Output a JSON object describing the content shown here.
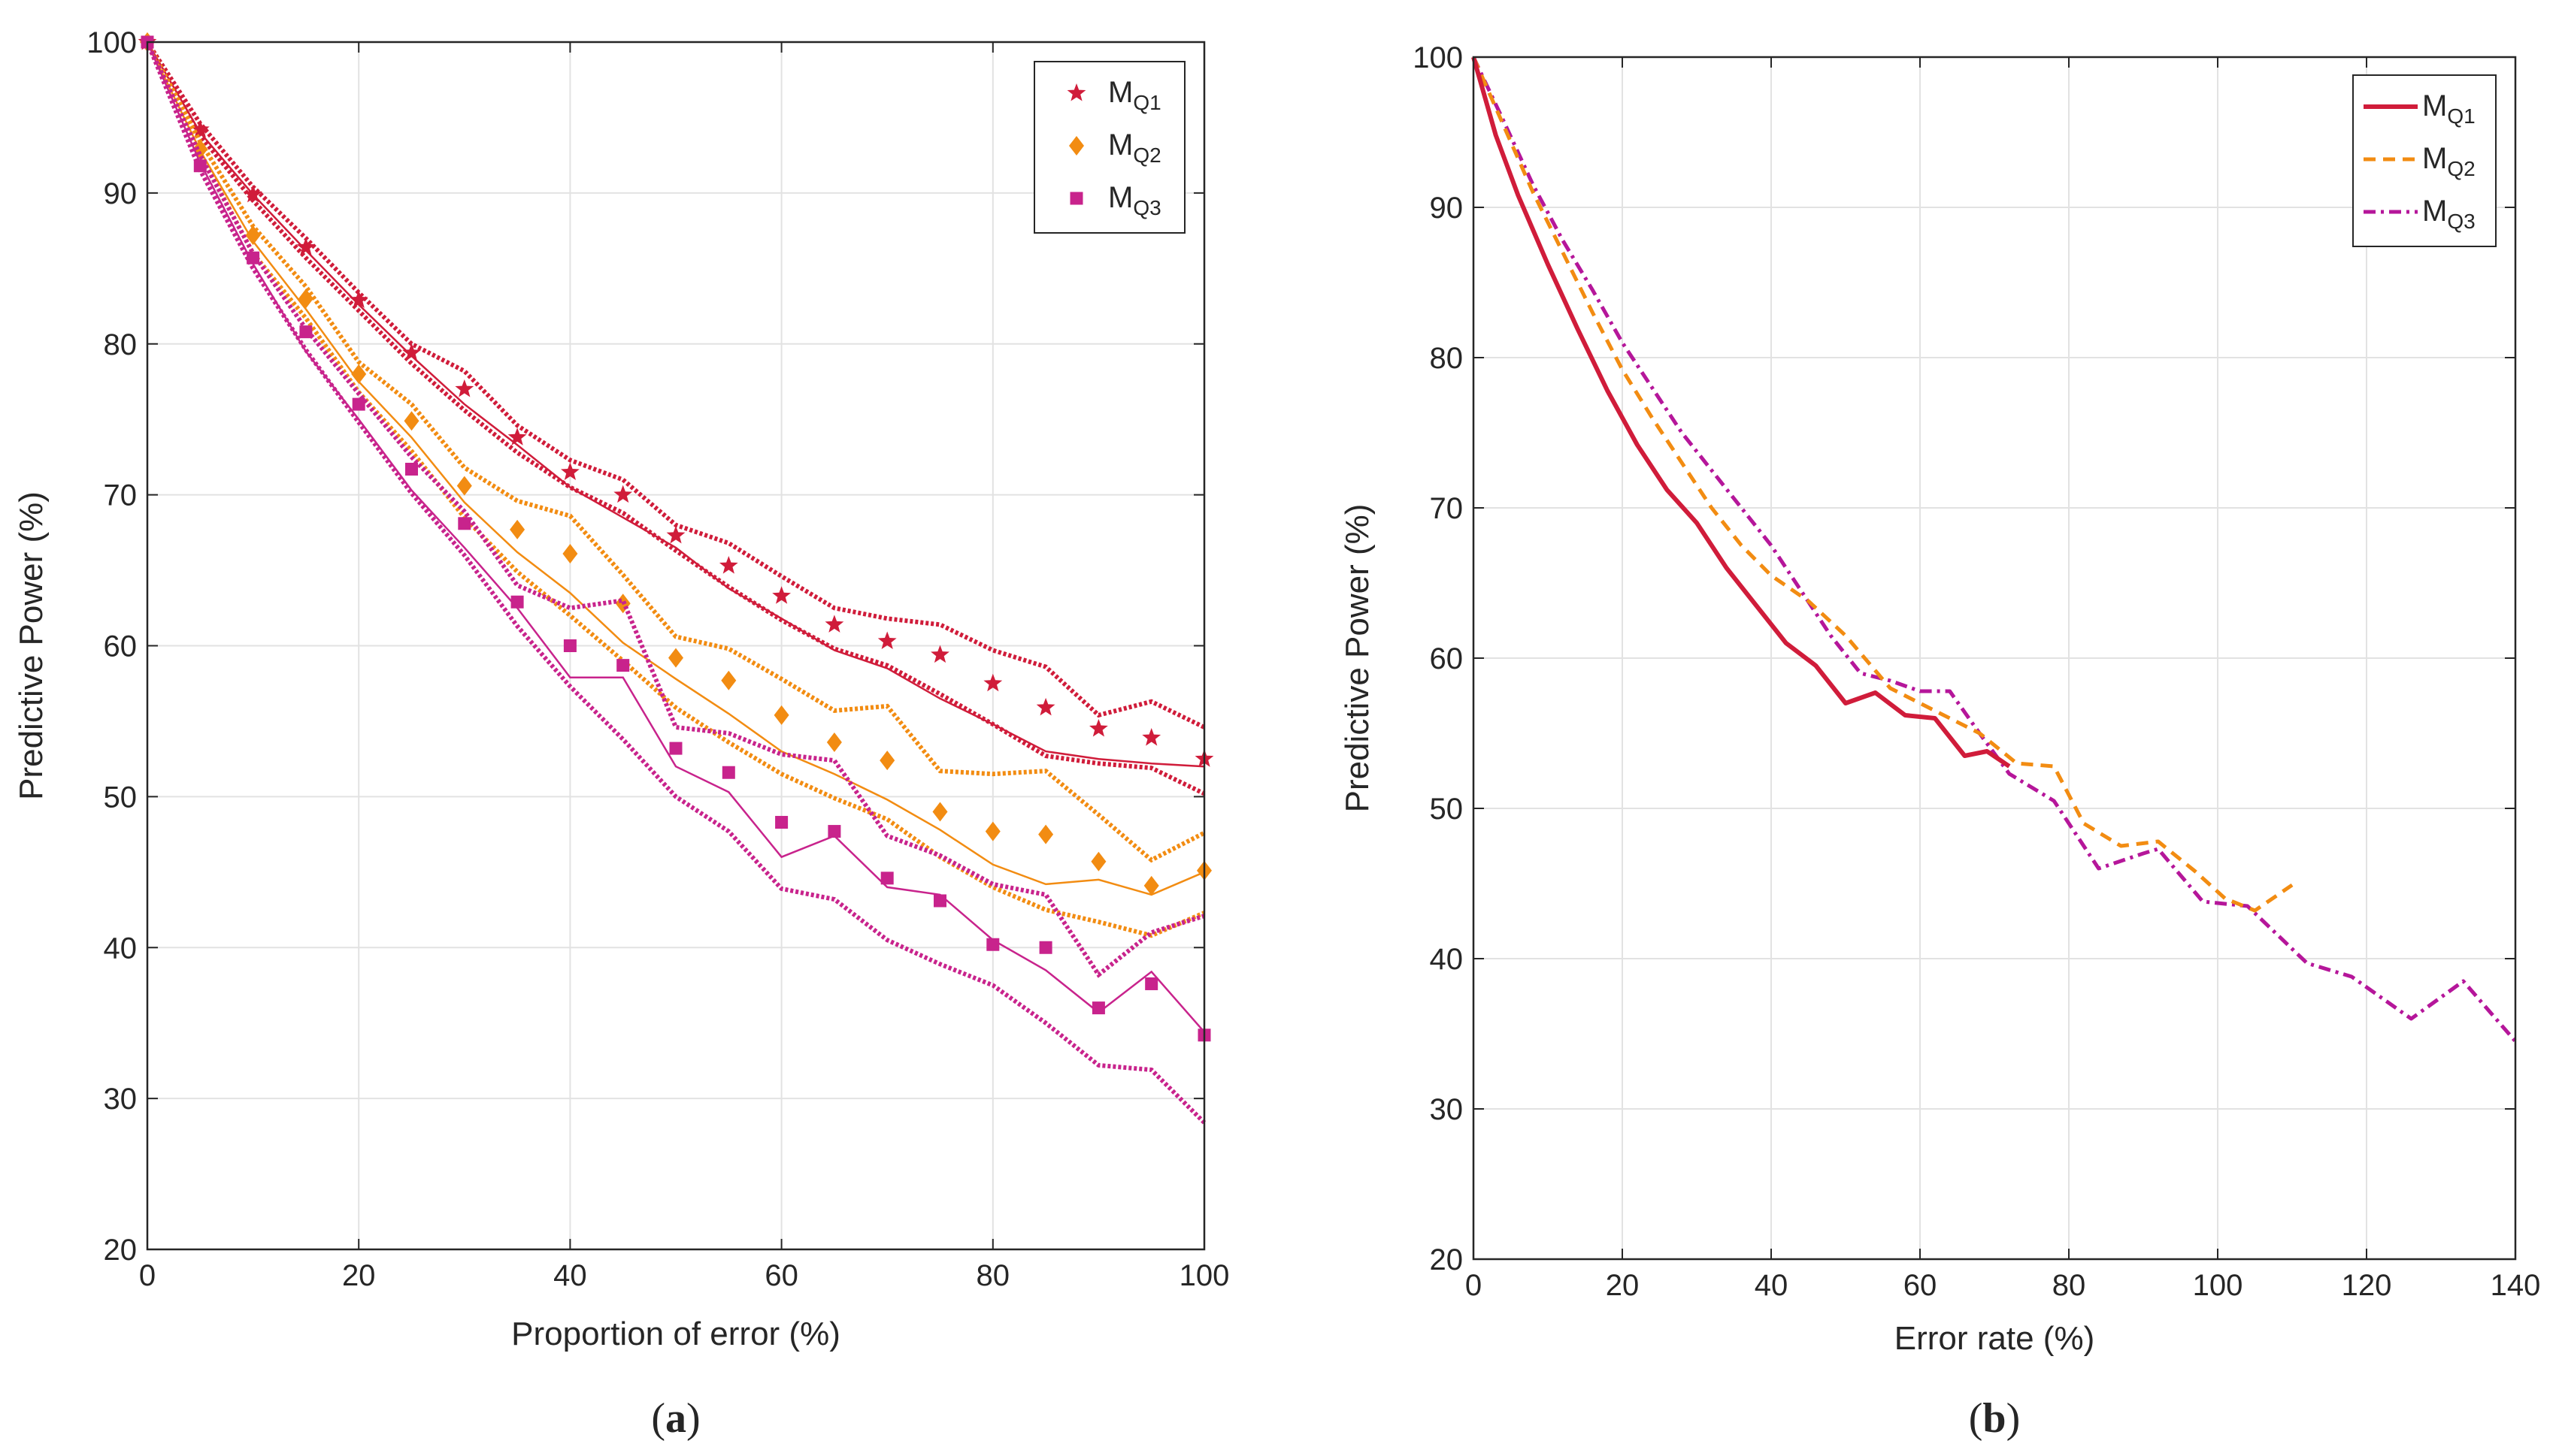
{
  "chart_data": [
    {
      "type": "line",
      "panel_label": "a",
      "xlabel": "Proportion of error (%)",
      "ylabel": "Predictive Power (%)",
      "xlim": [
        0,
        100
      ],
      "ylim": [
        20,
        100
      ],
      "xticks": [
        0,
        20,
        40,
        60,
        80,
        100
      ],
      "yticks": [
        20,
        30,
        40,
        50,
        60,
        70,
        80,
        90,
        100
      ],
      "grid": true,
      "legend_position": "top-right",
      "x": [
        0,
        5,
        10,
        15,
        20,
        25,
        30,
        35,
        40,
        45,
        50,
        55,
        60,
        65,
        70,
        75,
        80,
        85,
        90,
        95,
        100
      ],
      "series": [
        {
          "name": "M",
          "sub": "Q1",
          "color": "#d01c3a",
          "marker": "star",
          "values": [
            100,
            94.2,
            89.9,
            86.4,
            82.9,
            79.4,
            77.0,
            73.8,
            71.5,
            70.0,
            67.3,
            65.3,
            63.3,
            61.4,
            60.3,
            59.4,
            57.5,
            55.9,
            54.5,
            53.9,
            52.5
          ],
          "fit": [
            100,
            94.0,
            89.9,
            86.2,
            82.6,
            79.2,
            76.0,
            73.3,
            70.5,
            68.5,
            66.5,
            63.8,
            61.8,
            59.7,
            58.5,
            56.5,
            54.8,
            53.0,
            52.5,
            52.2,
            52.0
          ],
          "upper": [
            100,
            94.6,
            90.4,
            87.0,
            83.4,
            80.0,
            78.2,
            74.6,
            72.3,
            71.0,
            68.0,
            66.8,
            64.6,
            62.5,
            61.8,
            61.4,
            59.7,
            58.6,
            55.4,
            56.3,
            54.6
          ],
          "lower": [
            100,
            93.8,
            89.5,
            85.7,
            82.2,
            78.7,
            75.6,
            72.8,
            70.5,
            68.8,
            66.3,
            63.9,
            61.7,
            59.8,
            58.7,
            56.8,
            54.8,
            52.7,
            52.2,
            51.9,
            50.2
          ]
        },
        {
          "name": "M",
          "sub": "Q2",
          "color": "#f28c12",
          "marker": "diamond",
          "values": [
            100,
            92.9,
            87.2,
            83.0,
            78.0,
            74.9,
            70.6,
            67.7,
            66.1,
            62.8,
            59.2,
            57.7,
            55.4,
            53.6,
            52.4,
            49.0,
            47.7,
            47.5,
            45.7,
            44.1,
            45.1
          ],
          "fit": [
            100,
            92.8,
            86.8,
            82.3,
            77.5,
            73.8,
            69.5,
            66.2,
            63.5,
            60.2,
            57.8,
            55.5,
            53.0,
            51.5,
            49.8,
            47.8,
            45.5,
            44.2,
            44.5,
            43.5,
            45.0
          ],
          "upper": [
            100,
            93.4,
            87.8,
            83.8,
            78.8,
            76.0,
            71.8,
            69.6,
            68.6,
            64.7,
            60.6,
            59.8,
            57.8,
            55.7,
            56.0,
            51.7,
            51.5,
            51.7,
            48.8,
            45.8,
            47.6
          ],
          "lower": [
            100,
            92.6,
            86.0,
            81.7,
            76.8,
            72.9,
            68.5,
            64.9,
            62.0,
            59.0,
            55.9,
            53.6,
            51.5,
            49.9,
            48.5,
            46.0,
            44.0,
            42.5,
            41.7,
            40.8,
            42.3
          ]
        },
        {
          "name": "M",
          "sub": "Q3",
          "color": "#c8238c",
          "marker": "square",
          "values": [
            100,
            91.8,
            85.7,
            80.8,
            76.0,
            71.7,
            68.1,
            62.9,
            60.0,
            58.7,
            53.2,
            51.6,
            48.3,
            47.7,
            44.6,
            43.1,
            40.2,
            40.0,
            36.0,
            37.6,
            34.2
          ],
          "fit": [
            100,
            92.0,
            85.3,
            79.5,
            75.0,
            70.3,
            66.5,
            62.5,
            57.9,
            57.9,
            52.0,
            50.3,
            46.0,
            47.4,
            44.0,
            43.5,
            40.5,
            38.5,
            35.7,
            38.4,
            34.4
          ],
          "upper": [
            100,
            92.5,
            86.0,
            81.0,
            76.7,
            72.5,
            68.9,
            64.0,
            62.5,
            63.0,
            54.6,
            54.2,
            52.8,
            52.4,
            47.4,
            46.1,
            44.2,
            43.5,
            38.2,
            41.0,
            42.1
          ],
          "lower": [
            100,
            91.5,
            85.0,
            79.6,
            74.8,
            70.1,
            66.0,
            61.3,
            57.3,
            53.8,
            50.0,
            47.7,
            43.9,
            43.2,
            40.5,
            38.9,
            37.5,
            35.0,
            32.2,
            31.9,
            28.4
          ]
        }
      ]
    },
    {
      "type": "line",
      "panel_label": "b",
      "xlabel": "Error rate (%)",
      "ylabel": "Predictive Power (%)",
      "xlim": [
        0,
        140
      ],
      "ylim": [
        20,
        100
      ],
      "xticks": [
        0,
        20,
        40,
        60,
        80,
        100,
        120,
        140
      ],
      "yticks": [
        20,
        30,
        40,
        50,
        60,
        70,
        80,
        90,
        100
      ],
      "grid": true,
      "legend_position": "top-right",
      "series": [
        {
          "name": "M",
          "sub": "Q1",
          "color": "#d01c3a",
          "style": "solid",
          "x": [
            0,
            3,
            6,
            10,
            14,
            18,
            22,
            26,
            30,
            34,
            38,
            42,
            46,
            50,
            54,
            58,
            62,
            66,
            69,
            72
          ],
          "y": [
            100,
            94.8,
            90.8,
            86.2,
            81.9,
            77.8,
            74.2,
            71.2,
            69.0,
            66.0,
            63.5,
            61.0,
            59.5,
            57.0,
            57.7,
            56.2,
            56.0,
            53.5,
            53.8,
            52.8
          ]
        },
        {
          "name": "M",
          "sub": "Q2",
          "color": "#f28c12",
          "style": "dashed",
          "x": [
            0,
            4,
            8,
            12,
            16,
            20,
            24,
            28,
            32,
            36,
            40,
            45,
            50,
            56,
            62,
            68,
            73,
            78,
            82,
            87,
            92,
            97,
            101,
            105,
            110
          ],
          "y": [
            100,
            95.5,
            91.0,
            87.0,
            83.0,
            79.2,
            76.0,
            73.0,
            70.0,
            67.5,
            65.5,
            63.8,
            61.5,
            58.0,
            56.5,
            55.0,
            53.0,
            52.8,
            49.0,
            47.5,
            47.8,
            45.8,
            44.0,
            43.2,
            44.9
          ]
        },
        {
          "name": "M",
          "sub": "Q3",
          "color": "#b5169a",
          "style": "dashdot",
          "x": [
            0,
            4,
            8,
            12,
            16,
            20,
            24,
            28,
            32,
            36,
            40,
            44,
            48,
            52,
            56,
            60,
            64,
            68,
            72,
            78,
            84,
            90,
            92,
            98,
            104,
            112,
            118,
            126,
            133,
            140
          ],
          "y": [
            100,
            95.8,
            91.5,
            87.8,
            84.5,
            81.0,
            78.0,
            75.0,
            72.5,
            70.0,
            67.5,
            64.5,
            61.5,
            59.0,
            58.5,
            57.8,
            57.8,
            55.0,
            52.3,
            50.5,
            46.0,
            47.0,
            47.3,
            43.8,
            43.5,
            39.7,
            38.8,
            36.0,
            38.5,
            34.5
          ]
        }
      ]
    }
  ]
}
